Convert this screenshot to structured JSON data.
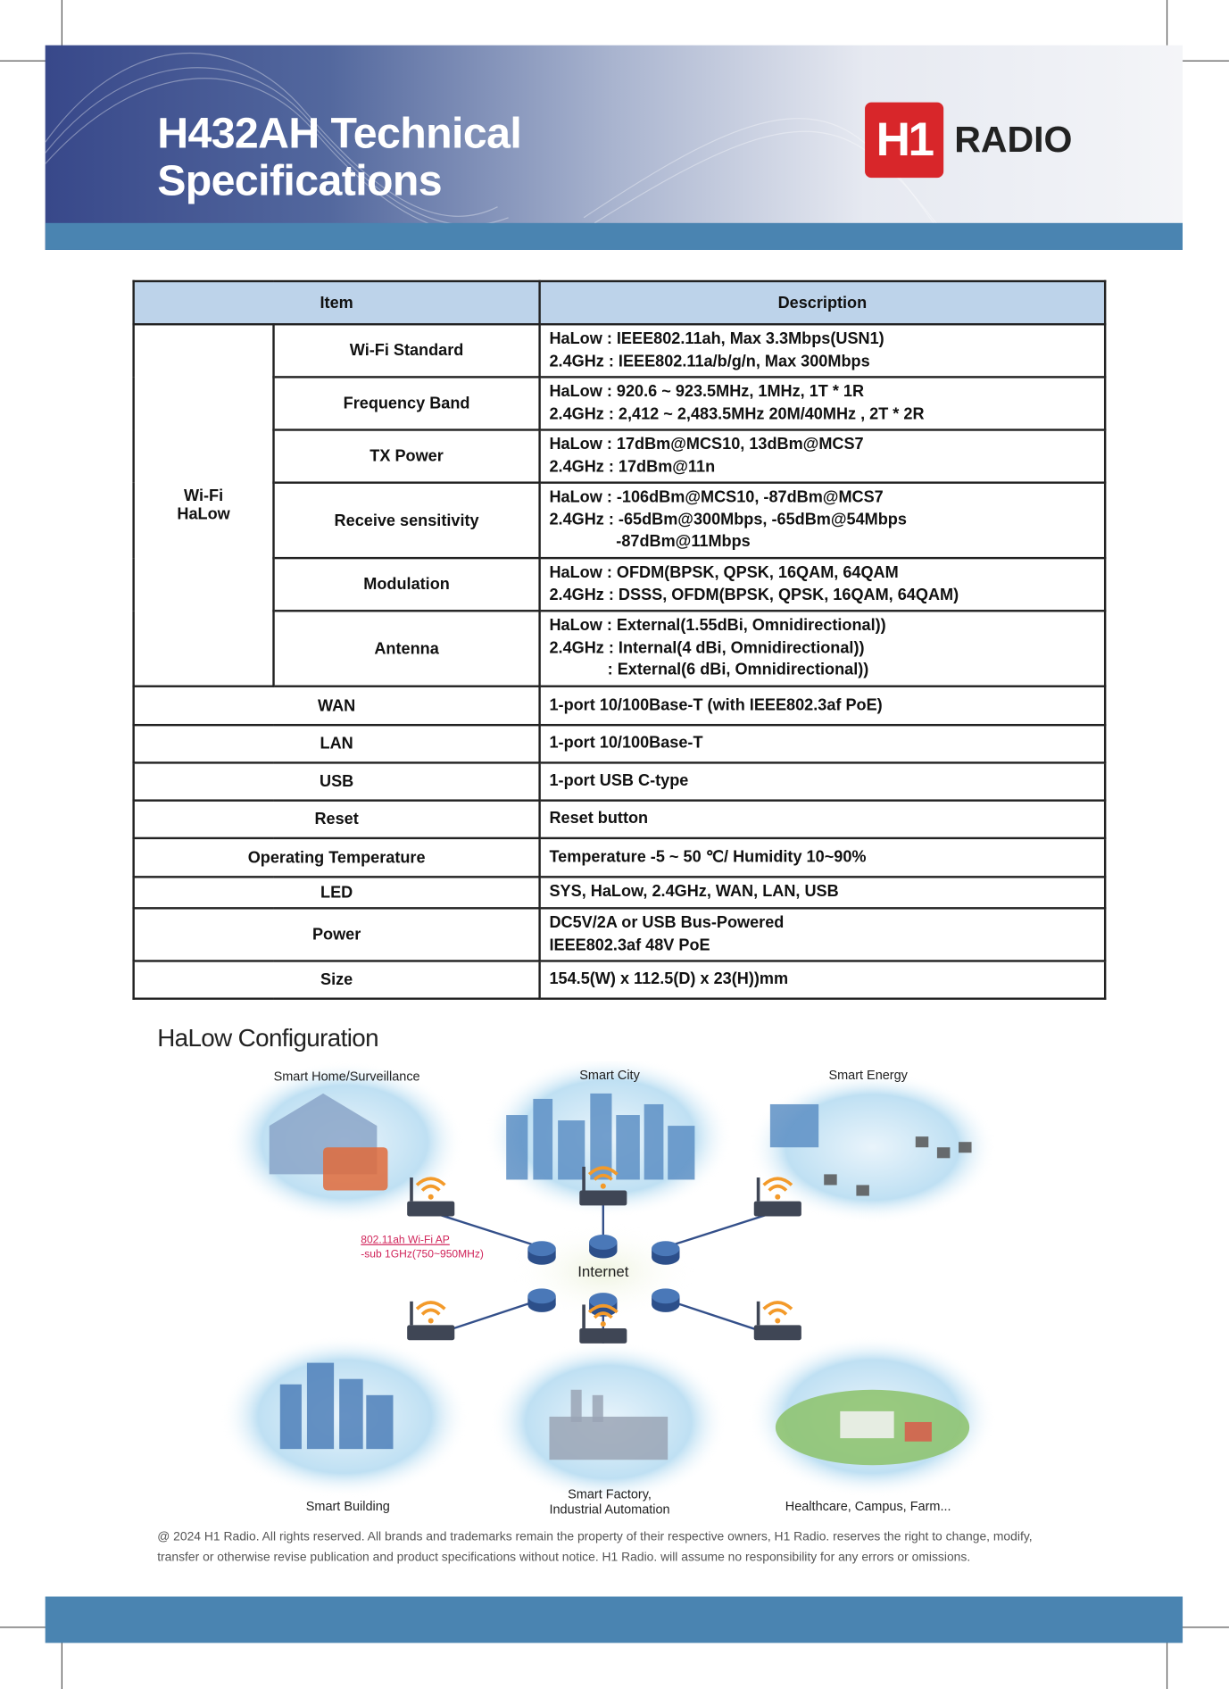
{
  "header": {
    "title_line1": "H432AH Technical",
    "title_line2": "Specifications",
    "logo_mark": "H1",
    "logo_word": "RADIO"
  },
  "colors": {
    "banner_dark": "#38488a",
    "band": "#4a84b1",
    "table_header": "#bdd3ea",
    "logo_red": "#d8262a",
    "ap_label": "#d0245a"
  },
  "table": {
    "headers": [
      "Item",
      "Description"
    ],
    "group": "Wi-Fi HaLow",
    "group_line1": "Wi-Fi",
    "group_line2": "HaLow",
    "wifi_rows": [
      {
        "item": "Wi-Fi  Standard",
        "lines": [
          "HaLow  : IEEE802.11ah, Max 3.3Mbps(USN1)",
          "2.4GHz : IEEE802.11a/b/g/n, Max 300Mbps"
        ]
      },
      {
        "item": "Frequency Band",
        "lines": [
          "HaLow  : 920.6 ~ 923.5MHz, 1MHz, 1T * 1R",
          "2.4GHz : 2,412 ~ 2,483.5MHz  20M/40MHz , 2T * 2R"
        ]
      },
      {
        "item": "TX Power",
        "lines": [
          "HaLow : 17dBm@MCS10, 13dBm@MCS7",
          "2.4GHz : 17dBm@11n"
        ]
      },
      {
        "item": "Receive sensitivity",
        "lines": [
          "HaLow : -106dBm@MCS10, -87dBm@MCS7",
          "2.4GHz : -65dBm@300Mbps, -65dBm@54Mbps",
          "-87dBm@11Mbps"
        ]
      },
      {
        "item": "Modulation",
        "lines": [
          "HaLow : OFDM(BPSK, QPSK, 16QAM, 64QAM",
          "2.4GHz : DSSS, OFDM(BPSK, QPSK, 16QAM, 64QAM)"
        ]
      },
      {
        "item": "Antenna",
        "lines": [
          "HaLow :  External(1.55dBi, Omnidirectional))",
          "2.4GHz : Internal(4 dBi, Omnidirectional))",
          ": External(6 dBi, Omnidirectional))"
        ]
      }
    ],
    "rows": [
      {
        "item": "WAN",
        "lines": [
          "1-port 10/100Base-T (with IEEE802.3af PoE)"
        ]
      },
      {
        "item": "LAN",
        "lines": [
          "1-port 10/100Base-T"
        ]
      },
      {
        "item": "USB",
        "lines": [
          "1-port USB C-type"
        ]
      },
      {
        "item": "Reset",
        "lines": [
          "Reset button"
        ]
      },
      {
        "item": "Operating Temperature",
        "lines": [
          "Temperature  -5 ~ 50 ℃/ Humidity  10~90%"
        ]
      },
      {
        "item": "LED",
        "lines": [
          "SYS, HaLow, 2.4GHz, WAN, LAN, USB"
        ]
      },
      {
        "item": "Power",
        "lines": [
          "DC5V/2A or USB Bus-Powered",
          "IEEE802.3af  48V PoE"
        ]
      },
      {
        "item": "Size",
        "lines": [
          "154.5(W) x 112.5(D) x 23(H))mm"
        ]
      }
    ]
  },
  "config": {
    "title": "HaLow Configuration",
    "center": "Internet",
    "ap_label_line1": "802.11ah Wi-Fi AP",
    "ap_label_line2": "-sub 1GHz(750~950MHz)",
    "scenes": [
      "Smart Home/Surveillance",
      "Smart City",
      "Smart Energy",
      "Smart Building",
      "Smart Factory,",
      "Industrial Automation",
      "Healthcare, Campus, Farm..."
    ]
  },
  "footer": {
    "line1": "@ 2024 H1 Radio. All rights reserved. All brands and trademarks remain the property of their respective owners, H1 Radio. reserves the right to change, modify,",
    "line2": "transfer or otherwise revise publication and product specifications without notice. H1 Radio. will assume no responsibility for any errors or omissions."
  }
}
